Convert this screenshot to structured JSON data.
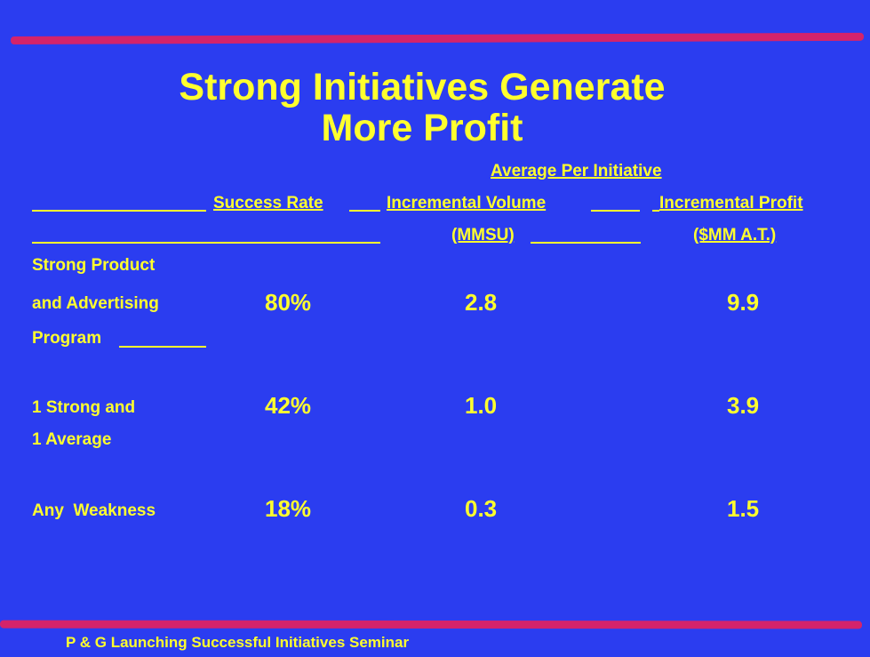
{
  "title": {
    "line1": "Strong Initiatives Generate",
    "line2": "More Profit"
  },
  "header": {
    "group": "Average Per Initiative",
    "col1": "Success Rate",
    "col2": "Incremental Volume",
    "col3": "Incremental Profit",
    "col2_unit": "(MMSU)",
    "col3_unit": "($MM A.T.)"
  },
  "rows": [
    {
      "label_lines": [
        "Strong Product",
        "and Advertising",
        "Program"
      ],
      "success_rate": "80%",
      "volume": "2.8",
      "profit": "9.9"
    },
    {
      "label_lines": [
        "1 Strong and",
        "1 Average"
      ],
      "success_rate": "42%",
      "volume": "1.0",
      "profit": "3.9"
    },
    {
      "label_lines": [
        "Any  Weakness"
      ],
      "success_rate": "18%",
      "volume": "0.3",
      "profit": "1.5"
    }
  ],
  "footer": "P & G Launching Successful Initiatives Seminar",
  "colors": {
    "background": "#2b3df0",
    "text": "#ffff2e",
    "accent_bar": "#d4236b"
  }
}
